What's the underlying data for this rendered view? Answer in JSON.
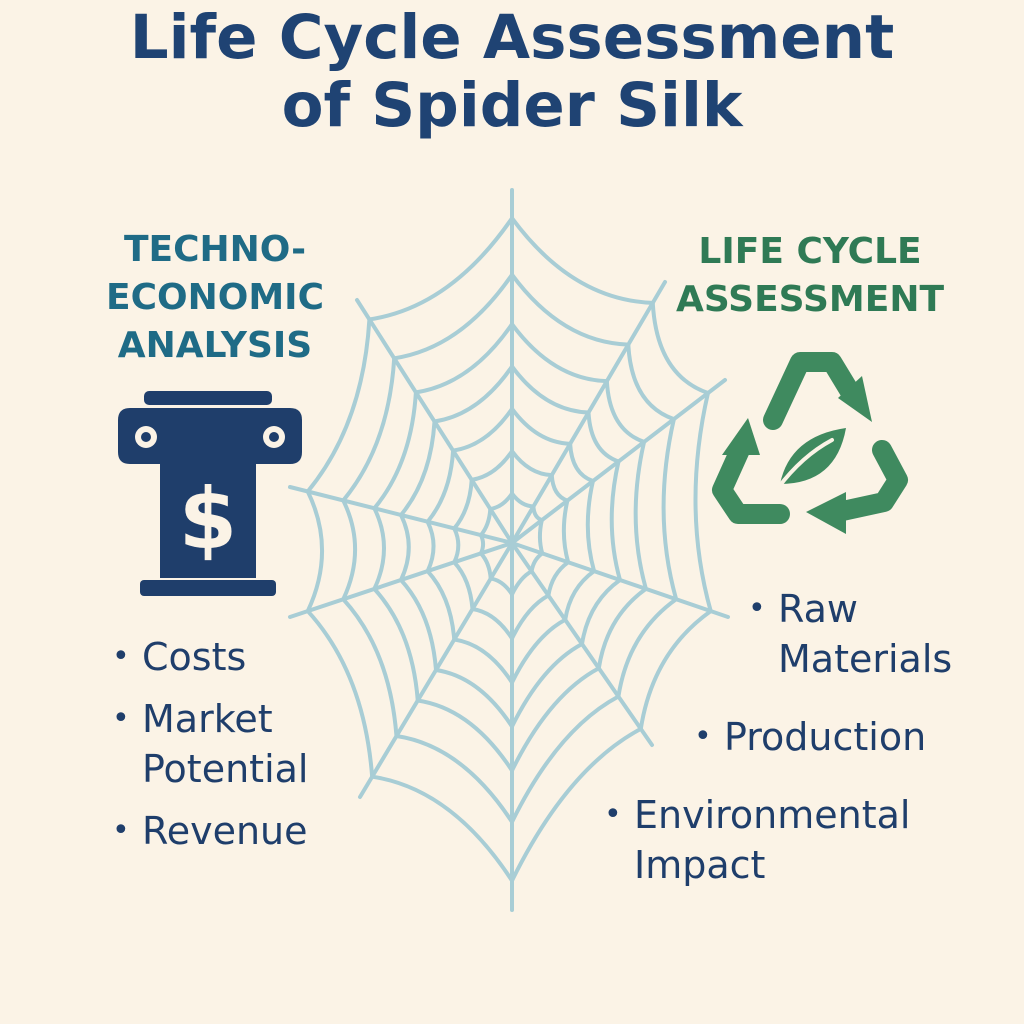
{
  "title": {
    "line1": "Life Cycle Assessment",
    "line2": "of Spider Silk"
  },
  "left_section": {
    "heading": {
      "line1": "TECHNO-",
      "line2": "ECONOMIC",
      "line3": "ANALYSIS"
    },
    "icon": "pillar-dollar-icon",
    "bullets": [
      {
        "line1": "Costs"
      },
      {
        "line1": "Market",
        "line2": "Potential"
      },
      {
        "line1": "Revenue"
      }
    ]
  },
  "right_section": {
    "heading": {
      "line1": "LIFE CYCLE",
      "line2": "ASSESSMENT"
    },
    "icon": "recycle-leaf-icon",
    "bullets": [
      {
        "line1": "Raw",
        "line2": "Materials"
      },
      {
        "line1": "Production"
      },
      {
        "line1": "Environmental",
        "line2": "Impact"
      }
    ]
  },
  "center_graphic": "spider-web-icon",
  "colors": {
    "background": "#fbf3e6",
    "title": "#1f4373",
    "left_heading": "#1f6b86",
    "right_heading": "#2f7a55",
    "bullet_text": "#1f3e6b",
    "web": "#a8cdd5",
    "pillar": "#1f3e6b",
    "recycle": "#3f8a5f"
  }
}
